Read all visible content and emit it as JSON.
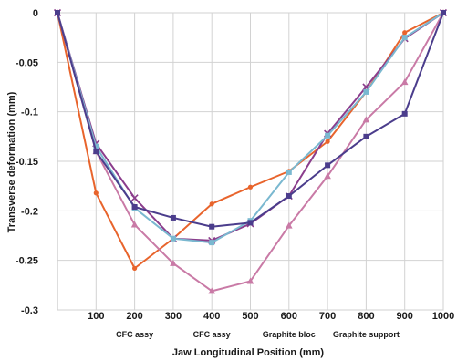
{
  "chart_data": {
    "type": "line",
    "title": "",
    "xlabel": "Jaw Longitudinal Position (mm)",
    "ylabel": "Transverse deformation (mm)",
    "xlim": [
      0,
      1000
    ],
    "ylim": [
      -0.3,
      0
    ],
    "x": [
      0,
      100,
      200,
      300,
      400,
      500,
      600,
      700,
      800,
      900,
      1000
    ],
    "x_tick_labels": [
      "100",
      "200",
      "300",
      "400",
      "500",
      "600",
      "700",
      "800",
      "900",
      "1000"
    ],
    "y_tick_labels": [
      "0",
      "-0.05",
      "-0.1",
      "-0.15",
      "-0.2",
      "-0.25",
      "-0.3"
    ],
    "annotations": [
      "CFC assy",
      "CFC assy",
      "Graphite bloc",
      "Graphite support"
    ],
    "grid": true,
    "legend": "none",
    "series": [
      {
        "color": "#e8642c",
        "marker": "dot",
        "values": [
          0,
          -0.182,
          -0.258,
          -0.228,
          -0.193,
          -0.176,
          -0.16,
          -0.13,
          -0.08,
          -0.02,
          0
        ]
      },
      {
        "color": "#8b3d8c",
        "marker": "x",
        "values": [
          0,
          -0.132,
          -0.187,
          -0.228,
          -0.23,
          -0.213,
          -0.185,
          -0.122,
          -0.075,
          -0.026,
          0
        ]
      },
      {
        "color": "#7ab8d0",
        "marker": "square",
        "values": [
          0,
          -0.135,
          -0.197,
          -0.228,
          -0.232,
          -0.21,
          -0.161,
          -0.124,
          -0.08,
          -0.025,
          0
        ]
      },
      {
        "color": "#c97aa6",
        "marker": "triangle",
        "values": [
          0,
          -0.14,
          -0.214,
          -0.253,
          -0.281,
          -0.271,
          -0.215,
          -0.165,
          -0.108,
          -0.07,
          0
        ]
      },
      {
        "color": "#4b3d8c",
        "marker": "square",
        "values": [
          0,
          -0.14,
          -0.196,
          -0.207,
          -0.216,
          -0.212,
          -0.185,
          -0.154,
          -0.125,
          -0.102,
          0
        ]
      }
    ]
  }
}
